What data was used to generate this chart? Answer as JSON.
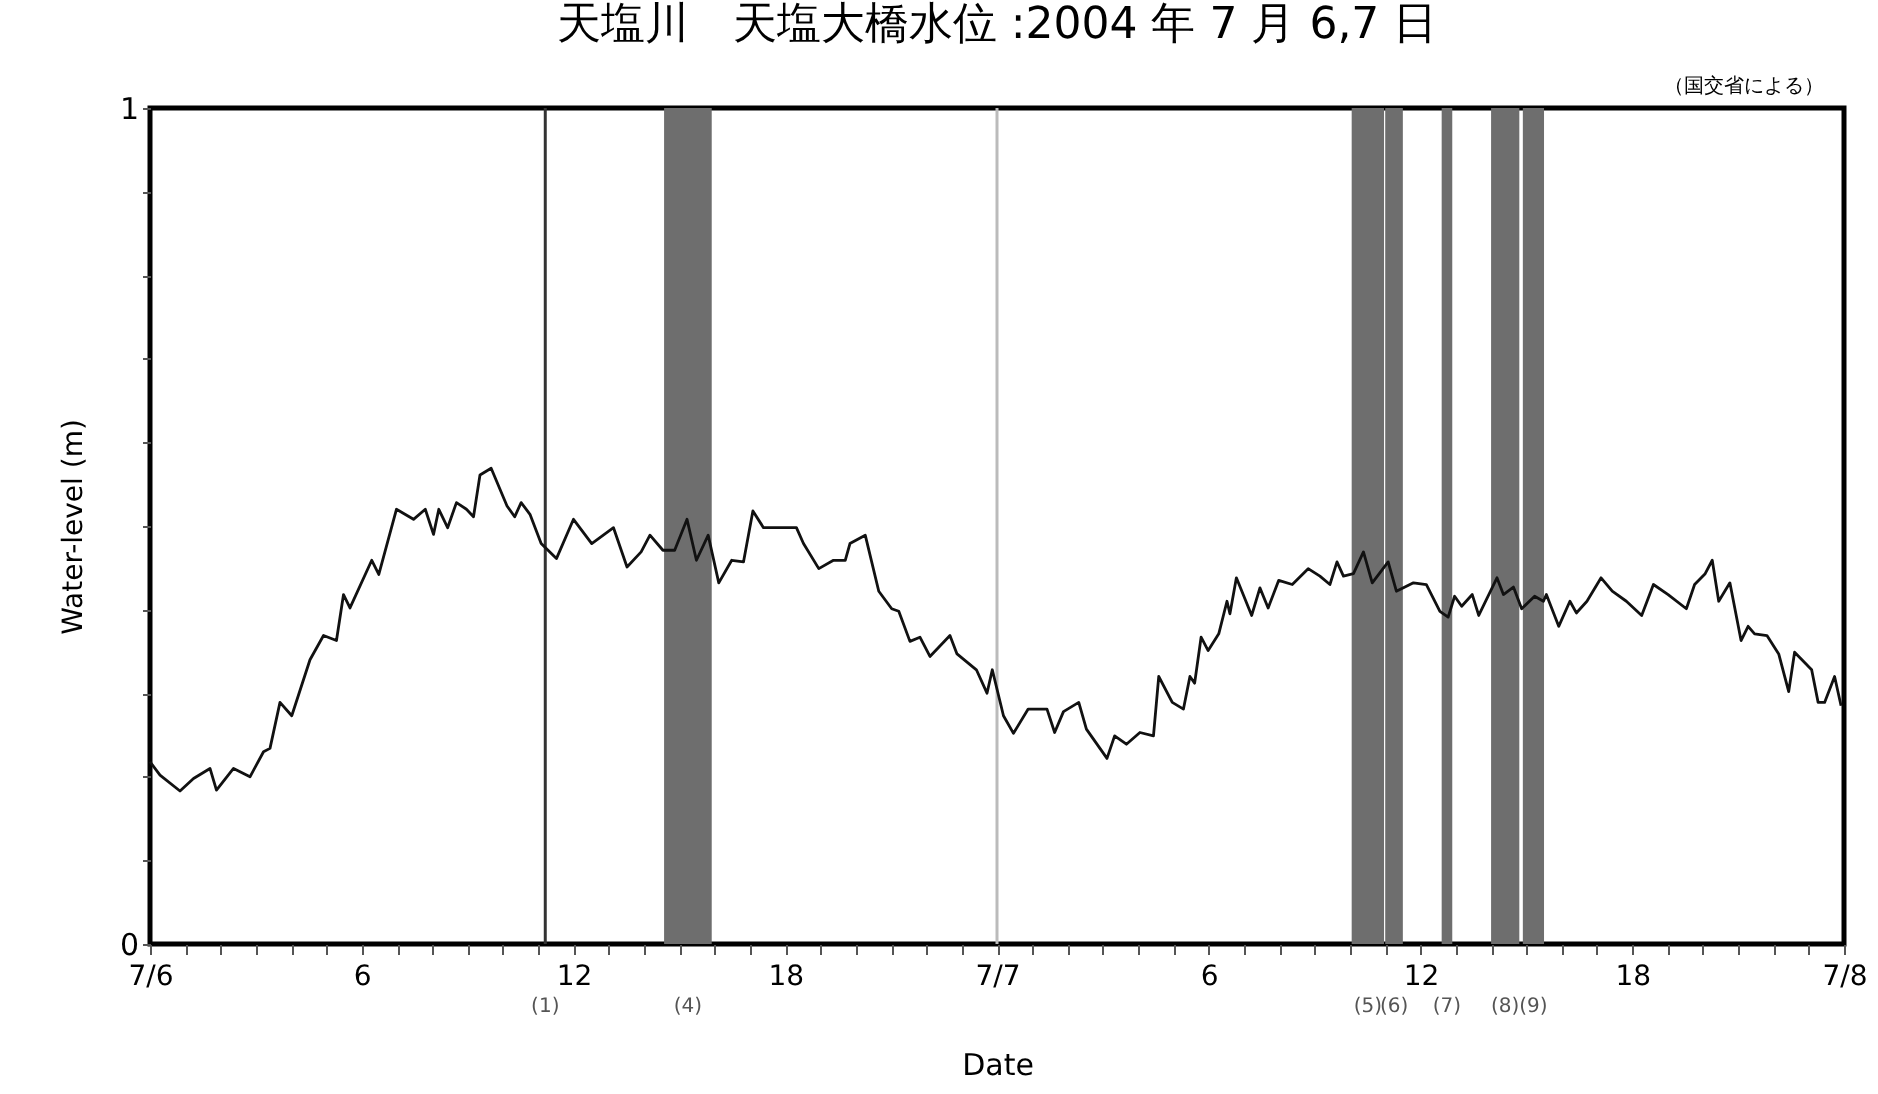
{
  "chart_data": {
    "type": "line",
    "title": "天塩川　天塩大橋水位 :2004 年 7 月 6,7 日",
    "xlabel": "Date",
    "ylabel": "Water-level (m)",
    "annotations": [
      "（国交省による）"
    ],
    "xlim": [
      "2004-07-06T00:00",
      "2004-07-08T00:00"
    ],
    "ylim": [
      0,
      1
    ],
    "xticks": [
      {
        "value": "2004-07-06T00:00",
        "label": "7/6"
      },
      {
        "value": "2004-07-06T01:00",
        "label": null
      },
      {
        "value": "2004-07-06T02:00",
        "label": null
      },
      {
        "value": "2004-07-06T03:00",
        "label": null
      },
      {
        "value": "2004-07-06T04:00",
        "label": null
      },
      {
        "value": "2004-07-06T05:00",
        "label": null
      },
      {
        "value": "2004-07-06T06:00",
        "label": "6"
      },
      {
        "value": "2004-07-06T07:00",
        "label": null
      },
      {
        "value": "2004-07-06T08:00",
        "label": null
      },
      {
        "value": "2004-07-06T09:00",
        "label": null
      },
      {
        "value": "2004-07-06T10:00",
        "label": null
      },
      {
        "value": "2004-07-06T11:00",
        "label": null
      },
      {
        "value": "2004-07-06T12:00",
        "label": "12"
      },
      {
        "value": "2004-07-06T13:00",
        "label": null
      },
      {
        "value": "2004-07-06T14:00",
        "label": null
      },
      {
        "value": "2004-07-06T15:00",
        "label": null
      },
      {
        "value": "2004-07-06T16:00",
        "label": null
      },
      {
        "value": "2004-07-06T17:00",
        "label": null
      },
      {
        "value": "2004-07-06T18:00",
        "label": "18"
      },
      {
        "value": "2004-07-06T19:00",
        "label": null
      },
      {
        "value": "2004-07-06T20:00",
        "label": null
      },
      {
        "value": "2004-07-06T21:00",
        "label": null
      },
      {
        "value": "2004-07-06T22:00",
        "label": null
      },
      {
        "value": "2004-07-06T23:00",
        "label": null
      },
      {
        "value": "2004-07-07T00:00",
        "label": "7/7"
      },
      {
        "value": "2004-07-07T01:00",
        "label": null
      },
      {
        "value": "2004-07-07T02:00",
        "label": null
      },
      {
        "value": "2004-07-07T03:00",
        "label": null
      },
      {
        "value": "2004-07-07T04:00",
        "label": null
      },
      {
        "value": "2004-07-07T05:00",
        "label": null
      },
      {
        "value": "2004-07-07T06:00",
        "label": "6"
      },
      {
        "value": "2004-07-07T07:00",
        "label": null
      },
      {
        "value": "2004-07-07T08:00",
        "label": null
      },
      {
        "value": "2004-07-07T09:00",
        "label": null
      },
      {
        "value": "2004-07-07T10:00",
        "label": null
      },
      {
        "value": "2004-07-07T11:00",
        "label": null
      },
      {
        "value": "2004-07-07T12:00",
        "label": "12"
      },
      {
        "value": "2004-07-07T13:00",
        "label": null
      },
      {
        "value": "2004-07-07T14:00",
        "label": null
      },
      {
        "value": "2004-07-07T15:00",
        "label": null
      },
      {
        "value": "2004-07-07T16:00",
        "label": null
      },
      {
        "value": "2004-07-07T17:00",
        "label": null
      },
      {
        "value": "2004-07-07T18:00",
        "label": "18"
      },
      {
        "value": "2004-07-07T19:00",
        "label": null
      },
      {
        "value": "2004-07-07T20:00",
        "label": null
      },
      {
        "value": "2004-07-07T21:00",
        "label": null
      },
      {
        "value": "2004-07-07T22:00",
        "label": null
      },
      {
        "value": "2004-07-07T23:00",
        "label": null
      },
      {
        "value": "2004-07-08T00:00",
        "label": "7/8"
      }
    ],
    "yticks": [
      0,
      {
        "value": 0.1,
        "label": null
      },
      {
        "value": 0.2,
        "label": null
      },
      {
        "value": 0.3,
        "label": null
      },
      {
        "value": 0.4,
        "label": null
      },
      {
        "value": 0.5,
        "label": null
      },
      {
        "value": 0.6,
        "label": null
      },
      {
        "value": 0.7,
        "label": null
      },
      {
        "value": 0.8,
        "label": null
      },
      {
        "value": 0.9,
        "label": null
      },
      1
    ],
    "grid": false,
    "marker": "none",
    "line_style": "solid",
    "ref_lines": [
      {
        "axis": "x",
        "value": "2004-07-06T11:12",
        "label": "(1)",
        "color": "#333333"
      },
      {
        "axis": "x",
        "value": "2004-07-07T00:00",
        "label": null,
        "color": "#bbbbbb"
      }
    ],
    "bands": [
      {
        "axis": "x",
        "from": "2004-07-06T14:34",
        "to": "2004-07-06T15:55",
        "label": "(4)",
        "color": "#6e6e6e"
      },
      {
        "axis": "x",
        "from": "2004-07-07T10:03",
        "to": "2004-07-07T10:58",
        "label": "(5)",
        "color": "#6e6e6e"
      },
      {
        "axis": "x",
        "from": "2004-07-07T11:00",
        "to": "2004-07-07T11:30",
        "label": "(6)",
        "color": "#6e6e6e"
      },
      {
        "axis": "x",
        "from": "2004-07-07T12:36",
        "to": "2004-07-07T12:54",
        "label": "(7)",
        "color": "#6e6e6e"
      },
      {
        "axis": "x",
        "from": "2004-07-07T14:00",
        "to": "2004-07-07T14:48",
        "label": "(8)",
        "color": "#6e6e6e"
      },
      {
        "axis": "x",
        "from": "2004-07-07T14:54",
        "to": "2004-07-07T15:30",
        "label": "(9)",
        "color": "#6e6e6e"
      }
    ],
    "series": [
      {
        "color": "#111111",
        "x": [
          "2004-07-06T00:00",
          "2004-07-06T00:17",
          "2004-07-06T00:51",
          "2004-07-06T01:14",
          "2004-07-06T01:42",
          "2004-07-06T01:53",
          "2004-07-06T02:22",
          "2004-07-06T02:50",
          "2004-07-06T03:13",
          "2004-07-06T03:24",
          "2004-07-06T03:41",
          "2004-07-06T04:01",
          "2004-07-06T04:32",
          "2004-07-06T04:55",
          "2004-07-06T05:17",
          "2004-07-06T05:29",
          "2004-07-06T05:40",
          "2004-07-06T06:17",
          "2004-07-06T06:29",
          "2004-07-06T06:59",
          "2004-07-06T07:28",
          "2004-07-06T07:48",
          "2004-07-06T08:02",
          "2004-07-06T08:11",
          "2004-07-06T08:26",
          "2004-07-06T08:41",
          "2004-07-06T08:58",
          "2004-07-06T09:10",
          "2004-07-06T09:21",
          "2004-07-06T09:40",
          "2004-07-06T10:07",
          "2004-07-06T10:20",
          "2004-07-06T10:31",
          "2004-07-06T10:46",
          "2004-07-06T11:05",
          "2004-07-06T11:31",
          "2004-07-06T12:00",
          "2004-07-06T12:31",
          "2004-07-06T13:08",
          "2004-07-06T13:31",
          "2004-07-06T13:55",
          "2004-07-06T14:10",
          "2004-07-06T14:32",
          "2004-07-06T14:52",
          "2004-07-06T15:13",
          "2004-07-06T15:29",
          "2004-07-06T15:49",
          "2004-07-06T16:07",
          "2004-07-06T16:29",
          "2004-07-06T16:49",
          "2004-07-06T17:05",
          "2004-07-06T17:23",
          "2004-07-06T18:19",
          "2004-07-06T18:31",
          "2004-07-06T18:57",
          "2004-07-06T19:22",
          "2004-07-06T19:42",
          "2004-07-06T19:50",
          "2004-07-06T20:16",
          "2004-07-06T20:39",
          "2004-07-06T21:01",
          "2004-07-06T21:13",
          "2004-07-06T21:32",
          "2004-07-06T21:49",
          "2004-07-06T22:06",
          "2004-07-06T22:40",
          "2004-07-06T22:52",
          "2004-07-06T23:25",
          "2004-07-06T23:43",
          "2004-07-06T23:52",
          "2004-07-07T00:11",
          "2004-07-07T00:28",
          "2004-07-07T00:53",
          "2004-07-07T01:25",
          "2004-07-07T01:38",
          "2004-07-07T01:53",
          "2004-07-07T02:19",
          "2004-07-07T02:32",
          "2004-07-07T03:07",
          "2004-07-07T03:20",
          "2004-07-07T03:40",
          "2004-07-07T04:03",
          "2004-07-07T04:26",
          "2004-07-07T04:35",
          "2004-07-07T04:58",
          "2004-07-07T05:17",
          "2004-07-07T05:28",
          "2004-07-07T05:36",
          "2004-07-07T05:47",
          "2004-07-07T05:59",
          "2004-07-07T06:17",
          "2004-07-07T06:31",
          "2004-07-07T06:36",
          "2004-07-07T06:47",
          "2004-07-07T07:13",
          "2004-07-07T07:27",
          "2004-07-07T07:41",
          "2004-07-07T07:59",
          "2004-07-07T08:22",
          "2004-07-07T08:49",
          "2004-07-07T09:09",
          "2004-07-07T09:26",
          "2004-07-07T09:38",
          "2004-07-07T09:49",
          "2004-07-07T10:06",
          "2004-07-07T10:23",
          "2004-07-07T10:38",
          "2004-07-07T11:05",
          "2004-07-07T11:19",
          "2004-07-07T11:48",
          "2004-07-07T12:10",
          "2004-07-07T12:33",
          "2004-07-07T12:47",
          "2004-07-07T12:58",
          "2004-07-07T13:10",
          "2004-07-07T13:28",
          "2004-07-07T13:39",
          "2004-07-07T13:52",
          "2004-07-07T14:10",
          "2004-07-07T14:21",
          "2004-07-07T14:38",
          "2004-07-07T14:52",
          "2004-07-07T15:14",
          "2004-07-07T15:29",
          "2004-07-07T15:34",
          "2004-07-07T15:55",
          "2004-07-07T16:14",
          "2004-07-07T16:25",
          "2004-07-07T16:43",
          "2004-07-07T17:07",
          "2004-07-07T17:26",
          "2004-07-07T17:50",
          "2004-07-07T18:16",
          "2004-07-07T18:36",
          "2004-07-07T19:01",
          "2004-07-07T19:32",
          "2004-07-07T19:46",
          "2004-07-07T20:04",
          "2004-07-07T20:16",
          "2004-07-07T20:27",
          "2004-07-07T20:46",
          "2004-07-07T21:05",
          "2004-07-07T21:17",
          "2004-07-07T21:28",
          "2004-07-07T21:49",
          "2004-07-07T22:09",
          "2004-07-07T22:26",
          "2004-07-07T22:36",
          "2004-07-07T23:05",
          "2004-07-07T23:16",
          "2004-07-07T23:27",
          "2004-07-07T23:44",
          "2004-07-07T23:55"
        ],
        "values": [
          0.218,
          0.202,
          0.183,
          0.198,
          0.21,
          0.184,
          0.21,
          0.2,
          0.23,
          0.234,
          0.289,
          0.273,
          0.34,
          0.369,
          0.363,
          0.418,
          0.402,
          0.459,
          0.442,
          0.52,
          0.508,
          0.52,
          0.49,
          0.52,
          0.498,
          0.528,
          0.52,
          0.511,
          0.561,
          0.569,
          0.524,
          0.511,
          0.528,
          0.514,
          0.479,
          0.461,
          0.508,
          0.479,
          0.498,
          0.451,
          0.469,
          0.489,
          0.471,
          0.471,
          0.508,
          0.459,
          0.489,
          0.432,
          0.459,
          0.457,
          0.518,
          0.498,
          0.498,
          0.479,
          0.449,
          0.459,
          0.459,
          0.479,
          0.489,
          0.422,
          0.401,
          0.398,
          0.362,
          0.367,
          0.344,
          0.369,
          0.347,
          0.328,
          0.3,
          0.328,
          0.273,
          0.252,
          0.281,
          0.281,
          0.253,
          0.278,
          0.289,
          0.257,
          0.222,
          0.249,
          0.239,
          0.253,
          0.249,
          0.32,
          0.289,
          0.281,
          0.32,
          0.312,
          0.367,
          0.351,
          0.371,
          0.41,
          0.395,
          0.438,
          0.393,
          0.426,
          0.402,
          0.435,
          0.43,
          0.449,
          0.44,
          0.43,
          0.457,
          0.44,
          0.443,
          0.469,
          0.432,
          0.457,
          0.422,
          0.432,
          0.43,
          0.398,
          0.391,
          0.416,
          0.404,
          0.418,
          0.393,
          0.412,
          0.438,
          0.418,
          0.427,
          0.401,
          0.416,
          0.41,
          0.418,
          0.38,
          0.41,
          0.396,
          0.41,
          0.438,
          0.422,
          0.41,
          0.393,
          0.43,
          0.418,
          0.401,
          0.43,
          0.443,
          0.459,
          0.41,
          0.432,
          0.363,
          0.38,
          0.371,
          0.369,
          0.347,
          0.302,
          0.349,
          0.328,
          0.289,
          0.289,
          0.32,
          0.285
        ]
      }
    ]
  }
}
